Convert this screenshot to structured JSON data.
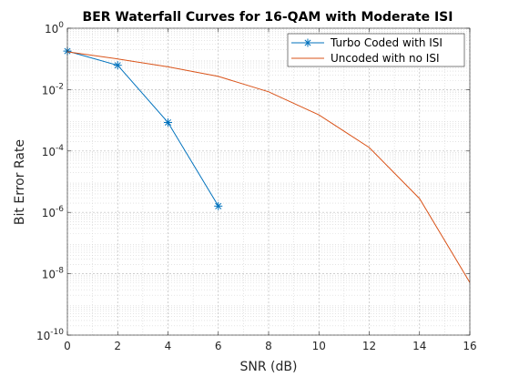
{
  "chart_data": {
    "type": "line",
    "title": "BER Waterfall Curves for 16-QAM with Moderate ISI",
    "xlabel": "SNR (dB)",
    "ylabel": "Bit Error Rate",
    "yscale": "log",
    "xlim": [
      0,
      16
    ],
    "ylim": [
      1e-10,
      1
    ],
    "grid": true,
    "minor_grid": true,
    "legend_position": "top-right",
    "x_ticks": [
      0,
      2,
      4,
      6,
      8,
      10,
      12,
      14,
      16
    ],
    "x_tick_labels": [
      "0",
      "2",
      "4",
      "6",
      "8",
      "10",
      "12",
      "14",
      "16"
    ],
    "y_ticks": [
      -10,
      -8,
      -6,
      -4,
      -2,
      0
    ],
    "y_tick_labels": [
      {
        "base": "10",
        "exp": "-10"
      },
      {
        "base": "10",
        "exp": "-8"
      },
      {
        "base": "10",
        "exp": "-6"
      },
      {
        "base": "10",
        "exp": "-4"
      },
      {
        "base": "10",
        "exp": "-2"
      },
      {
        "base": "10",
        "exp": "0"
      }
    ],
    "series": [
      {
        "name": "Turbo Coded with ISI",
        "color": "#0072BD",
        "marker": "asterisk",
        "x": [
          0,
          2,
          4,
          6
        ],
        "y": [
          0.18,
          0.062,
          0.00085,
          1.6e-06
        ]
      },
      {
        "name": "Uncoded with no ISI",
        "color": "#D95319",
        "marker": "none",
        "x": [
          0,
          2,
          4,
          6,
          8,
          10,
          12,
          14,
          16
        ],
        "y": [
          0.17,
          0.1,
          0.055,
          0.027,
          0.0085,
          0.0015,
          0.00013,
          2.8e-06,
          5.2e-09
        ]
      }
    ]
  }
}
